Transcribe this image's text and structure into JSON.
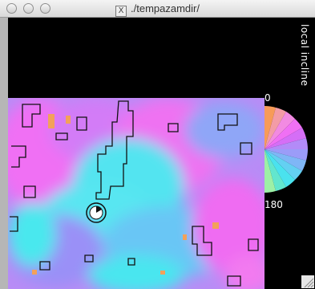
{
  "window": {
    "title": "./tempazamdir/",
    "title_icon": "x11-icon"
  },
  "plot": {
    "legend_title": "local incline",
    "scale_min": "0",
    "scale_max": "180"
  },
  "colors": {
    "background": "#000000",
    "map_cyan": "#44e8ee",
    "map_magenta": "#f070f4",
    "map_violet": "#a58af8",
    "map_orange": "#f4a05a"
  }
}
